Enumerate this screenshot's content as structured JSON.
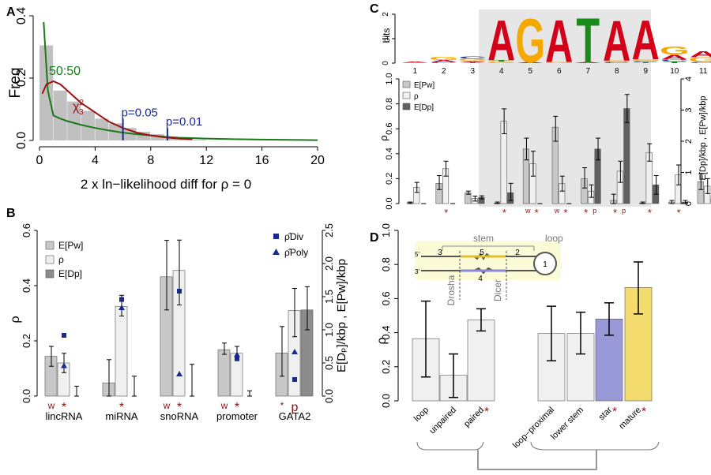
{
  "panels": {
    "A": "A",
    "B": "B",
    "C": "C",
    "D": "D"
  },
  "chart_data": [
    {
      "panel": "A",
      "type": "bar",
      "xlabel": "2 x ln−likelihood diff for ρ = 0",
      "ylabel": "Freq",
      "xlim": [
        0,
        20
      ],
      "ylim": [
        0,
        0.4
      ],
      "xticks": [
        "0",
        "4",
        "8",
        "12",
        "16",
        "20"
      ],
      "yticks": [
        "0.0",
        "0.2",
        "0.4"
      ],
      "bin_width": 1,
      "bin_start": [
        0,
        1,
        2,
        3,
        4,
        5,
        6,
        7,
        8,
        9,
        10,
        11
      ],
      "values": [
        0.305,
        0.16,
        0.125,
        0.095,
        0.07,
        0.055,
        0.04,
        0.028,
        0.02,
        0.012,
        0.006,
        0.003
      ],
      "curves": [
        {
          "name": "50:50",
          "color": "#1a7a1a",
          "x": [
            0.3,
            0.6,
            1,
            1.5,
            2,
            3,
            4,
            5,
            6,
            7,
            8,
            9,
            10,
            12,
            14,
            16,
            18,
            20
          ],
          "y": [
            0.38,
            0.16,
            0.08,
            0.07,
            0.062,
            0.05,
            0.04,
            0.032,
            0.025,
            0.02,
            0.016,
            0.012,
            0.009,
            0.006,
            0.004,
            0.003,
            0.002,
            0.001
          ]
        },
        {
          "name": "χ²₃",
          "color": "#a01010",
          "x": [
            0.2,
            0.5,
            1,
            1.5,
            2,
            3,
            4,
            5,
            6,
            7,
            8,
            9,
            10,
            11
          ],
          "y": [
            0.15,
            0.18,
            0.19,
            0.18,
            0.16,
            0.12,
            0.09,
            0.06,
            0.04,
            0.025,
            0.016,
            0.01,
            0.006,
            0.004
          ]
        }
      ],
      "curve_labels": {
        "green": "50:50",
        "red_base": "χ",
        "red_sup": "2",
        "red_sub": "3"
      },
      "thresholds": [
        {
          "label": "p=0.05",
          "x": 6,
          "y_top": 0.055
        },
        {
          "label": "p=0.01",
          "x": 9.2,
          "y_top": 0.025
        }
      ]
    },
    {
      "panel": "B",
      "type": "bar",
      "categories": [
        "lincRNA",
        "miRNA",
        "snoRNA",
        "promoter",
        "GATA2"
      ],
      "ylabel_left": "ρ",
      "ylabel_right": "E[Dₚ]/kbp  ,  E[Pw]/kbp",
      "ylim_left": [
        0,
        0.6
      ],
      "ylim_right": [
        0,
        2.5
      ],
      "yticks_left": [
        "0.0",
        "0.2",
        "0.4",
        "0.6"
      ],
      "yticks_right": [
        "0.0",
        "0.5",
        "1.0",
        "1.5",
        "2.0",
        "2.5"
      ],
      "legend": [
        "E[Pw]",
        "ρ",
        "E[Dp]"
      ],
      "legend_est": [
        "ρ̂Div",
        "ρ̂Poly"
      ],
      "series": [
        {
          "name": "E[Pw]",
          "color": "#c8c8c8",
          "right_axis": true,
          "values": [
            0.6,
            0.2,
            1.8,
            0.7,
            0.65
          ],
          "err_lo": [
            0.45,
            0.0,
            1.3,
            0.63,
            0.3
          ],
          "err_hi": [
            0.75,
            0.55,
            2.35,
            0.8,
            1.05
          ]
        },
        {
          "name": "ρ",
          "color": "#f0f0f0",
          "right_axis": false,
          "values": [
            0.12,
            0.325,
            0.455,
            0.155,
            0.31
          ],
          "err_lo": [
            0.085,
            0.29,
            0.33,
            0.13,
            0.215
          ],
          "err_hi": [
            0.155,
            0.365,
            0.565,
            0.18,
            0.39
          ]
        },
        {
          "name": "E[Dp]",
          "color": "#8c8c8c",
          "right_axis": true,
          "values": [
            0.0,
            0.0,
            0.0,
            0.0,
            1.3
          ],
          "err_lo": [
            0.0,
            0.0,
            0.0,
            0.0,
            1.0
          ],
          "err_hi": [
            0.15,
            0.3,
            0.48,
            0.08,
            1.65
          ]
        }
      ],
      "rho_div": [
        0.22,
        0.35,
        0.38,
        0.135,
        0.06
      ],
      "rho_poly": [
        0.11,
        0.32,
        0.08,
        0.15,
        0.16
      ],
      "marks": [
        [
          "w",
          "*"
        ],
        [
          "",
          "*"
        ],
        [
          "w",
          "*"
        ],
        [
          "w",
          "*"
        ],
        [
          "*",
          "p"
        ]
      ]
    },
    {
      "panel": "C",
      "type": "bar",
      "logo": {
        "ylabel": "bits",
        "yticks": [
          "0",
          "1",
          "2"
        ],
        "positions": [
          "1",
          "2",
          "3",
          "4",
          "5",
          "6",
          "7",
          "8",
          "9",
          "10",
          "11"
        ],
        "letters": [
          [
            [
              "A",
              0.03
            ],
            [
              "G",
              0.02
            ]
          ],
          [
            [
              "G",
              0.12
            ],
            [
              "A",
              0.08
            ],
            [
              "C",
              0.05
            ]
          ],
          [
            [
              "C",
              0.1
            ],
            [
              "G",
              0.08
            ],
            [
              "A",
              0.05
            ],
            [
              "T",
              0.04
            ]
          ],
          [
            [
              "A",
              1.7
            ],
            [
              "T",
              0.07
            ],
            [
              "G",
              0.06
            ]
          ],
          [
            [
              "G",
              1.85
            ],
            [
              "A",
              0.05
            ]
          ],
          [
            [
              "A",
              1.8
            ],
            [
              "G",
              0.05
            ]
          ],
          [
            [
              "T",
              1.9
            ],
            [
              "A",
              0.04
            ]
          ],
          [
            [
              "A",
              1.7
            ],
            [
              "G",
              0.06
            ],
            [
              "C",
              0.05
            ]
          ],
          [
            [
              "A",
              1.65
            ],
            [
              "G",
              0.07
            ],
            [
              "C",
              0.05
            ],
            [
              "T",
              0.04
            ]
          ],
          [
            [
              "G",
              0.35
            ],
            [
              "A",
              0.2
            ],
            [
              "C",
              0.08
            ],
            [
              "T",
              0.07
            ]
          ],
          [
            [
              "A",
              0.25
            ],
            [
              "G",
              0.2
            ],
            [
              "C",
              0.05
            ]
          ]
        ]
      },
      "ylabel_left": "ρ",
      "ylabel_right": "E[Dp]/kbp  ,  E[Pw]/kbp",
      "ylim_left": [
        0,
        1.0
      ],
      "ylim_right": [
        0,
        4
      ],
      "yticks_left": [
        "0.0",
        "0.2",
        "0.4",
        "0.6",
        "0.8",
        "1.0"
      ],
      "yticks_right": [
        "0",
        "1",
        "2",
        "3",
        "4"
      ],
      "legend": [
        "E[Pw]",
        "ρ",
        "E[Dp]"
      ],
      "series": [
        {
          "name": "E[Pw]",
          "color": "#c8c8c8",
          "right_axis": true,
          "values": [
            0.03,
            0.65,
            0.35,
            0.02,
            1.75,
            2.45,
            0.8,
            0.1,
            0.02,
            0.05,
            0.7
          ],
          "err_lo": [
            0.0,
            0.45,
            0.3,
            0.0,
            1.4,
            2.0,
            0.5,
            0.0,
            0.0,
            0.0,
            0.45
          ],
          "err_hi": [
            0.05,
            0.9,
            0.4,
            0.05,
            2.1,
            2.8,
            1.15,
            0.3,
            0.05,
            0.1,
            0.95
          ]
        },
        {
          "name": "ρ",
          "color": "#f0f0f0",
          "right_axis": false,
          "values": [
            0.13,
            0.28,
            0.04,
            0.66,
            0.32,
            0.16,
            0.1,
            0.26,
            0.41,
            0.23,
            0.14
          ],
          "err_lo": [
            0.09,
            0.22,
            0.02,
            0.56,
            0.22,
            0.1,
            0.05,
            0.17,
            0.34,
            0.15,
            0.08
          ],
          "err_hi": [
            0.17,
            0.34,
            0.06,
            0.76,
            0.42,
            0.22,
            0.15,
            0.34,
            0.48,
            0.31,
            0.2
          ]
        },
        {
          "name": "E[Dp]",
          "color": "#606060",
          "right_axis": true,
          "values": [
            0.0,
            0.0,
            0.2,
            0.35,
            0.0,
            0.0,
            1.75,
            3.05,
            0.6,
            0.05,
            0.15
          ],
          "err_lo": [
            0.0,
            0.0,
            0.15,
            0.1,
            0.0,
            0.0,
            1.4,
            2.6,
            0.3,
            0.0,
            0.05
          ],
          "err_hi": [
            0.0,
            0.0,
            0.25,
            0.65,
            0.0,
            0.0,
            2.1,
            3.5,
            0.9,
            0.1,
            0.3
          ]
        }
      ],
      "marks": [
        [
          ""
        ],
        [
          "*"
        ],
        [
          ""
        ],
        [
          "*"
        ],
        [
          "w",
          "*"
        ],
        [
          "w",
          "*"
        ],
        [
          "*",
          "p"
        ],
        [
          "*",
          "p"
        ],
        [
          "*"
        ],
        [
          "*"
        ],
        [
          ""
        ]
      ]
    },
    {
      "panel": "D",
      "type": "bar",
      "ylabel": "ρ",
      "ylim": [
        0,
        1.0
      ],
      "yticks": [
        "0.0",
        "0.2",
        "0.4",
        "0.6",
        "0.8",
        "1.0"
      ],
      "categories": [
        "loop",
        "unpaired",
        "paired",
        "loop−proximal",
        "lower stem",
        "star",
        "mature"
      ],
      "values": [
        0.365,
        0.15,
        0.475,
        0.395,
        0.395,
        0.48,
        0.665
      ],
      "err_lo": [
        0.14,
        0.02,
        0.41,
        0.235,
        0.275,
        0.385,
        0.51
      ],
      "err_hi": [
        0.585,
        0.275,
        0.54,
        0.555,
        0.52,
        0.575,
        0.815
      ],
      "colors": [
        "#f0f0f0",
        "#f0f0f0",
        "#f0f0f0",
        "#f0f0f0",
        "#f0f0f0",
        "#9999d8",
        "#f4dc6e"
      ],
      "starred": [
        false,
        false,
        true,
        false,
        false,
        true,
        true
      ],
      "hairpin": {
        "stem": "stem",
        "loop": "loop",
        "drosha": "Drosha",
        "dicer": "Dicer",
        "five": "5'",
        "three": "3'",
        "regions": [
          "1",
          "2",
          "3",
          "4",
          "5"
        ]
      }
    }
  ]
}
